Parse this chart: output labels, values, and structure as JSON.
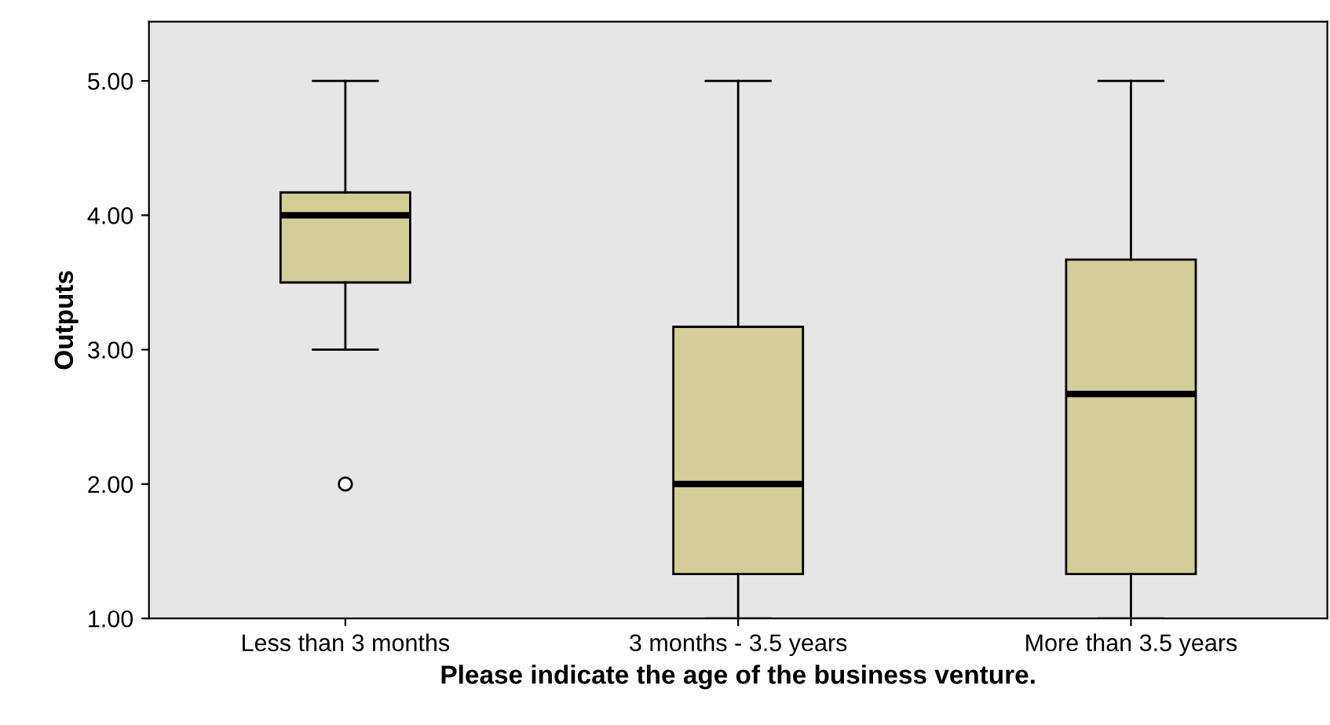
{
  "chart_data": {
    "type": "box",
    "xlabel": "Please indicate the age of the business venture.",
    "ylabel": "Outputs",
    "categories": [
      "Less than 3 months",
      "3 months - 3.5 years",
      "More than 3.5 years"
    ],
    "boxes": [
      {
        "low": 3.0,
        "q1": 3.5,
        "median": 4.0,
        "q3": 4.17,
        "high": 5.0,
        "outliers": [
          2.0
        ]
      },
      {
        "low": 1.0,
        "q1": 1.33,
        "median": 2.0,
        "q3": 3.17,
        "high": 5.0
      },
      {
        "low": 1.0,
        "q1": 1.33,
        "median": 2.67,
        "q3": 3.67,
        "high": 5.0
      }
    ],
    "color": "#d3ce97",
    "ylim": [
      1.0,
      5.44
    ],
    "yticks": [
      {
        "value": 1,
        "label": "1.00"
      },
      {
        "value": 2,
        "label": "2.00"
      },
      {
        "value": 3,
        "label": "3.00"
      },
      {
        "value": 4,
        "label": "4.00"
      },
      {
        "value": 5,
        "label": "5.00"
      }
    ],
    "grid": false
  }
}
